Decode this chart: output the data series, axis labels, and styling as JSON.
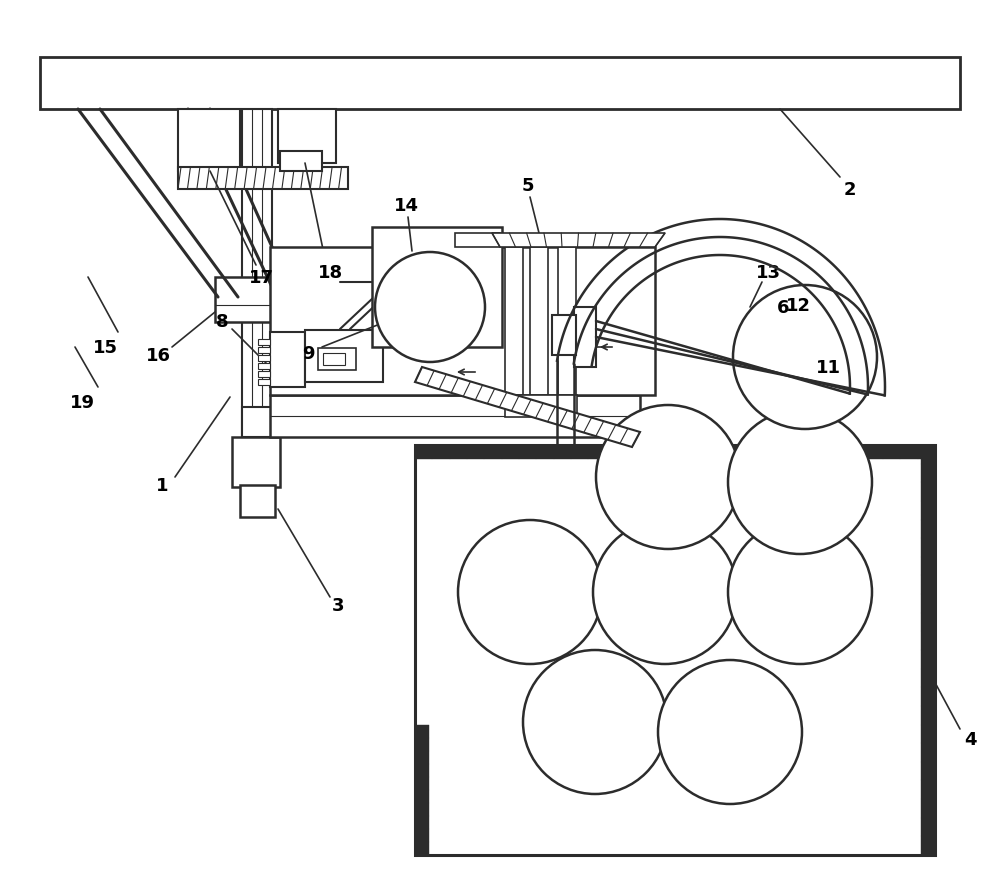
{
  "bg_color": "#ffffff",
  "line_color": "#2c2c2c",
  "fig_width": 10.0,
  "fig_height": 8.78,
  "dpi": 100
}
